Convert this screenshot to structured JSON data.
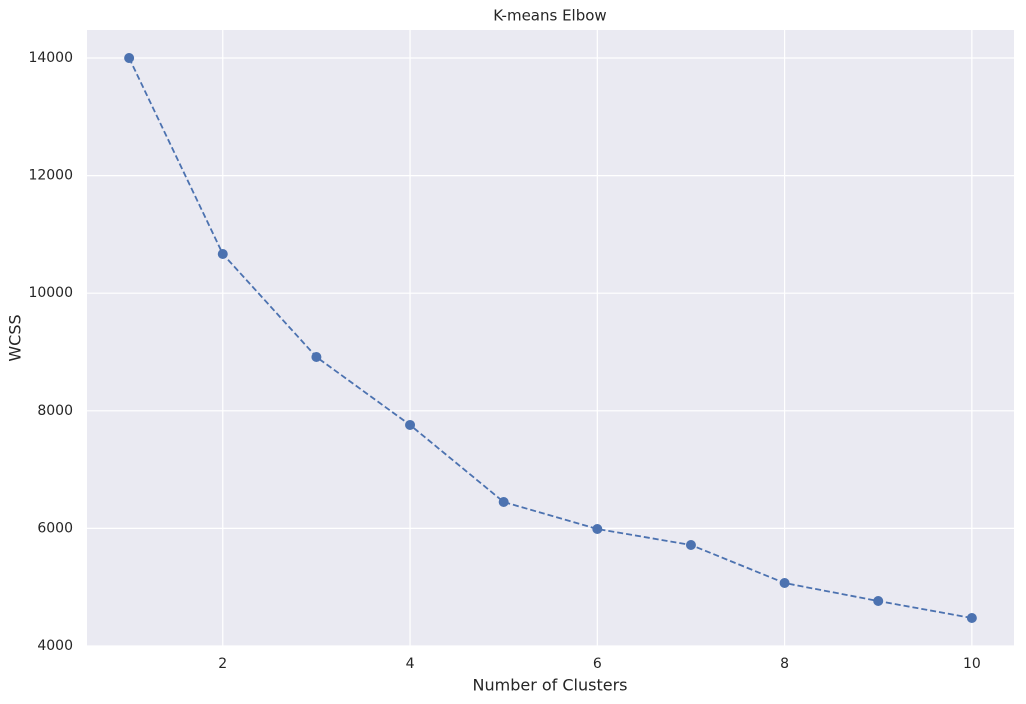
{
  "chart_data": {
    "type": "line",
    "title": "K-means Elbow",
    "x_label": "Number of Clusters",
    "y_label": "WCSS",
    "x": [
      1,
      2,
      3,
      4,
      5,
      6,
      7,
      8,
      9,
      10
    ],
    "series": [
      {
        "name": "WCSS",
        "color": "#4c72b0",
        "values": [
          14000,
          10667,
          8915,
          7759,
          6449,
          5990,
          5718,
          5071,
          4765,
          4476
        ]
      }
    ],
    "xlim": [
      0.55,
      10.45
    ],
    "xticks": [
      2,
      4,
      6,
      8,
      10
    ],
    "ylim": [
      4000,
      14476
    ],
    "yticks": [
      4000,
      6000,
      8000,
      10000,
      12000,
      14000
    ],
    "grid": true,
    "line_style": "dashed",
    "marker": "circle"
  }
}
